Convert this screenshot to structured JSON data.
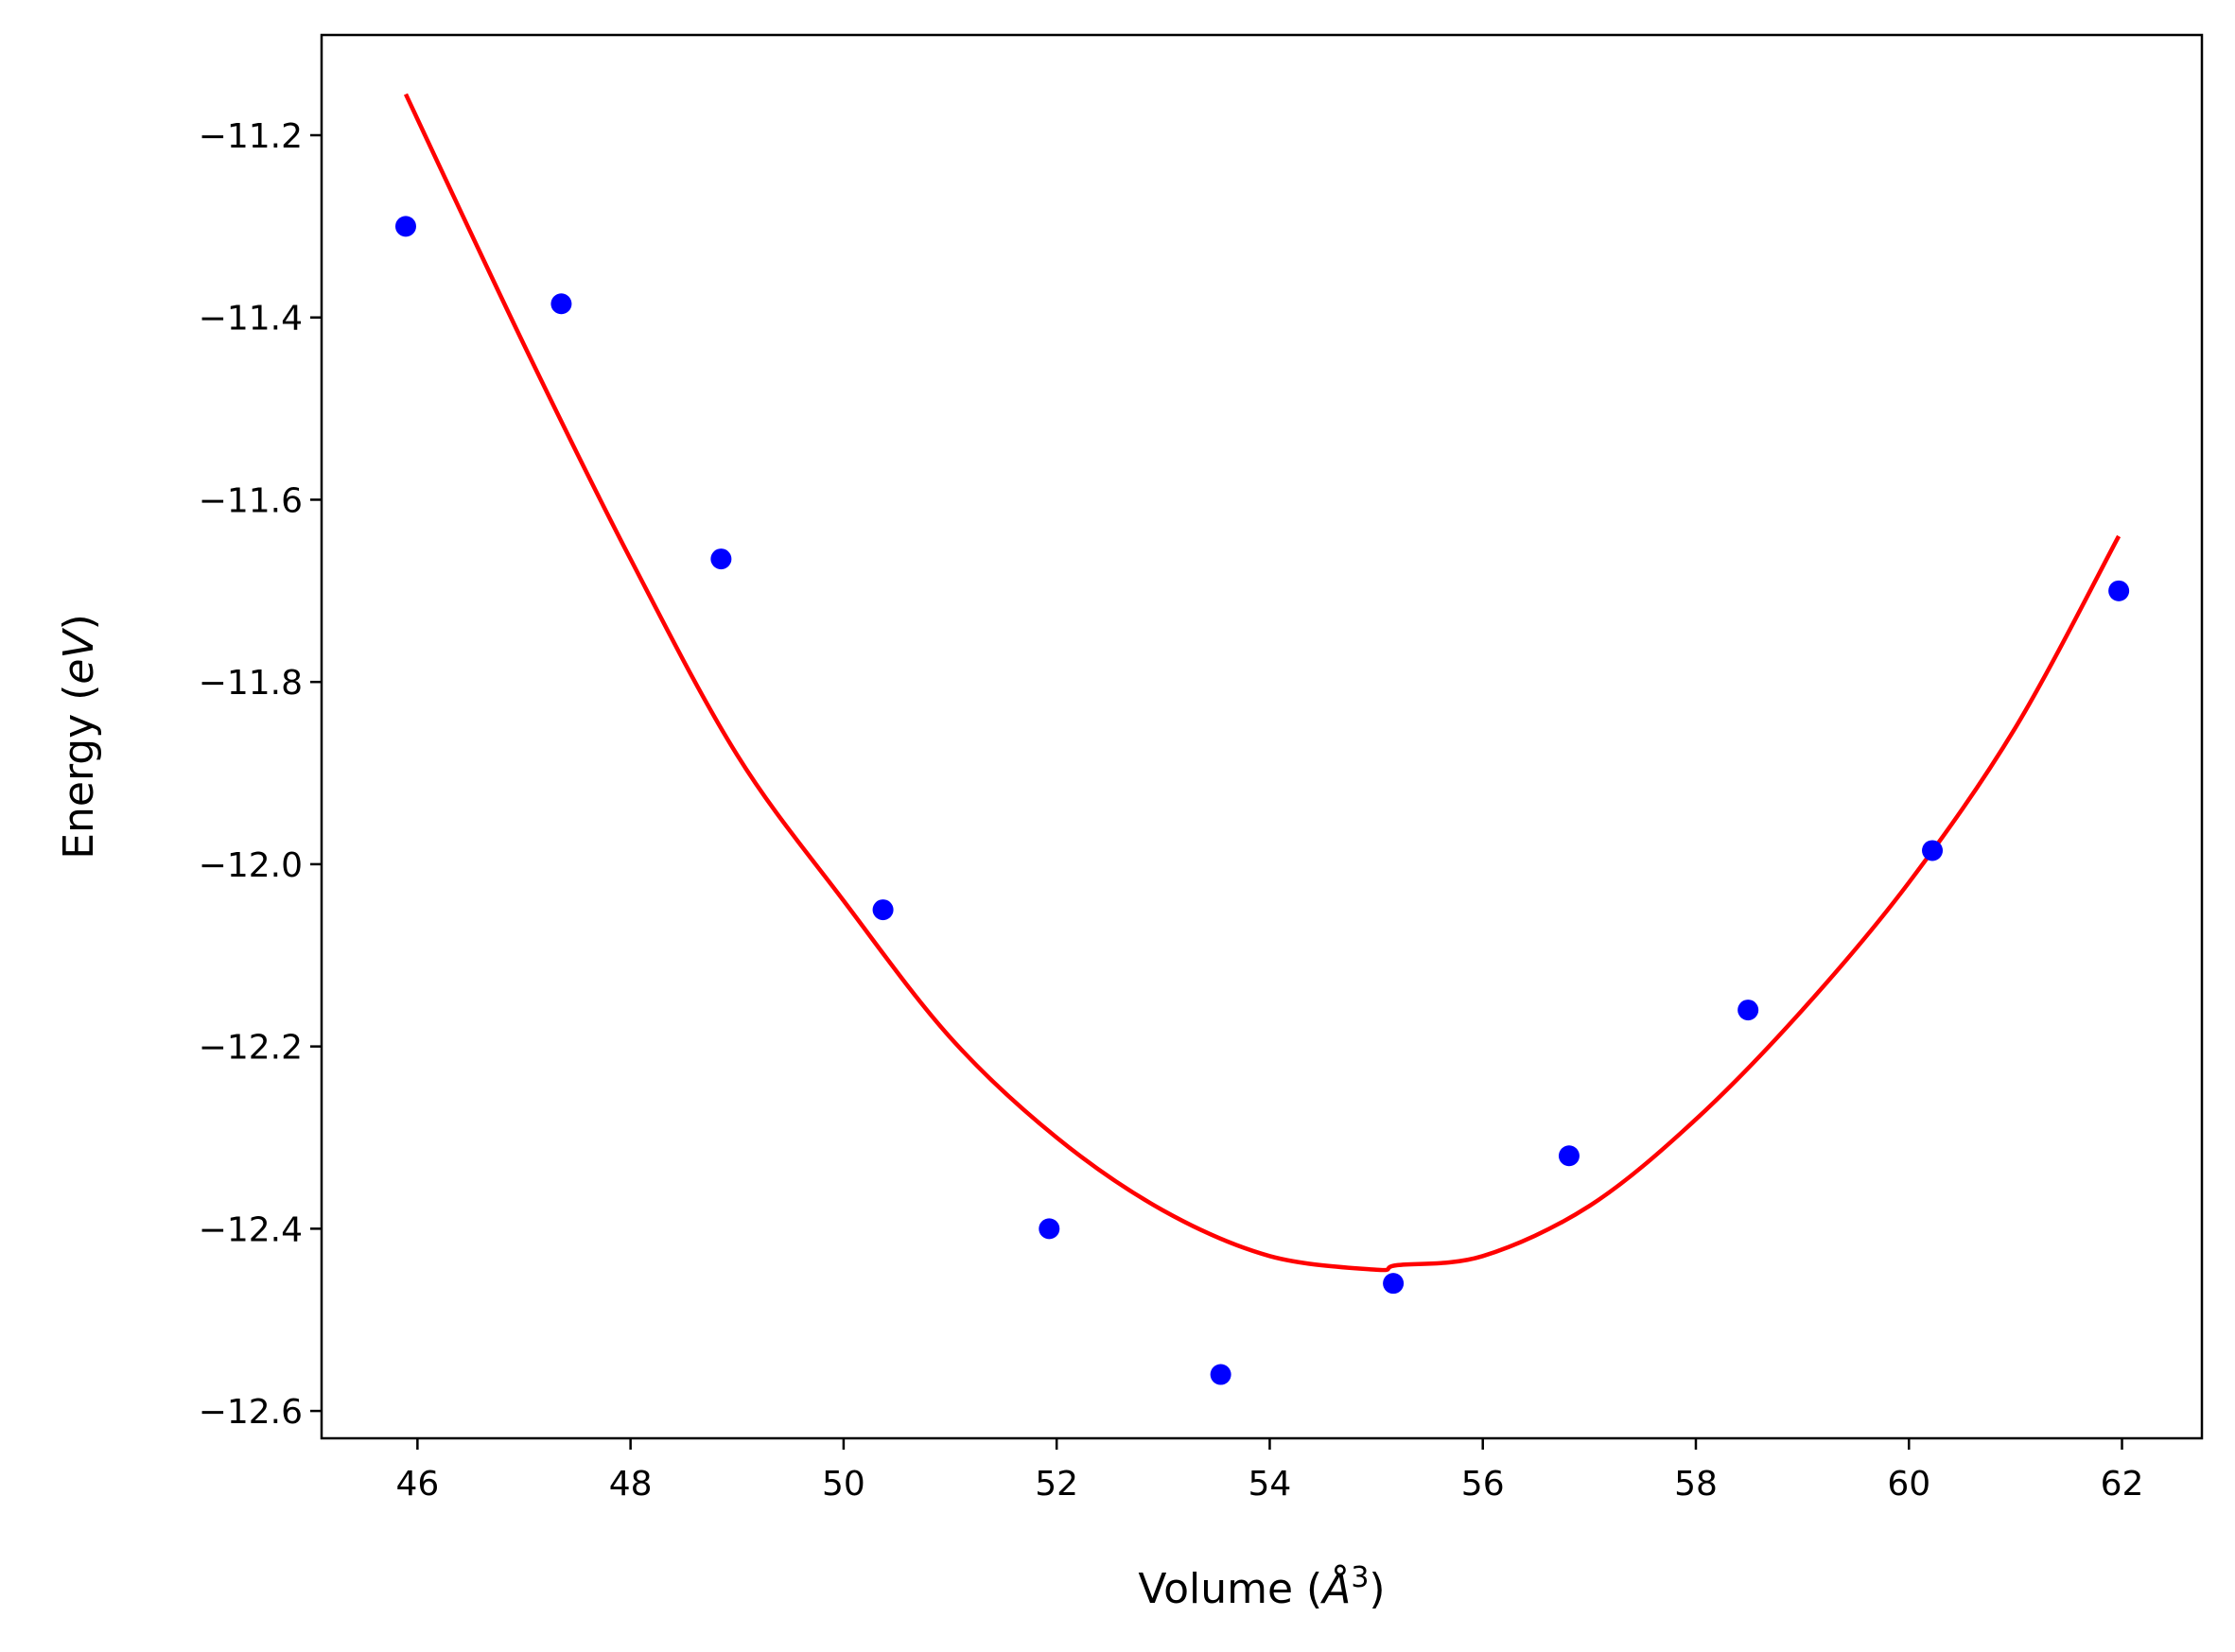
{
  "chart_data": {
    "type": "scatter",
    "xlabel": {
      "prefix": "Volume (",
      "var": "Å",
      "sup": "3",
      "suffix": ")"
    },
    "ylabel": {
      "prefix": "Energy (",
      "var": "eV",
      "suffix": ")"
    },
    "xlim": [
      45.1,
      62.75
    ],
    "ylim": [
      -12.63,
      -11.09
    ],
    "x_ticks": [
      46,
      48,
      50,
      52,
      54,
      56,
      58,
      60,
      62
    ],
    "x_tick_labels": [
      "46",
      "48",
      "50",
      "52",
      "54",
      "56",
      "58",
      "60",
      "62"
    ],
    "y_ticks": [
      -11.2,
      -11.4,
      -11.6,
      -11.8,
      -12.0,
      -12.2,
      -12.4,
      -12.6
    ],
    "y_tick_labels": [
      "−11.2",
      "−11.4",
      "−11.6",
      "−11.8",
      "−12.0",
      "−12.2",
      "−12.4",
      "−12.6"
    ],
    "grid": false,
    "legend": "none",
    "series": [
      {
        "kind": "points",
        "color": "#0000ff",
        "x": [
          45.89,
          47.35,
          48.85,
          50.37,
          51.93,
          53.54,
          55.16,
          56.81,
          58.49,
          60.22,
          61.97
        ],
        "y": [
          -11.3,
          -11.385,
          -11.665,
          -12.05,
          -12.4,
          -12.56,
          -12.46,
          -12.32,
          -12.16,
          -11.985,
          -11.7
        ]
      },
      {
        "kind": "fit-curve",
        "color": "#ff0000",
        "x": [
          45.89,
          47.0,
          48.0,
          49.0,
          50.0,
          51.0,
          52.0,
          53.0,
          54.0,
          55.0,
          55.2,
          56.0,
          57.0,
          58.0,
          59.0,
          60.0,
          61.0,
          61.97
        ],
        "y": [
          -11.155,
          -11.43,
          -11.665,
          -11.88,
          -12.04,
          -12.19,
          -12.3,
          -12.38,
          -12.43,
          -12.445,
          -12.44,
          -12.43,
          -12.375,
          -12.28,
          -12.16,
          -12.02,
          -11.85,
          -11.64
        ]
      }
    ]
  }
}
